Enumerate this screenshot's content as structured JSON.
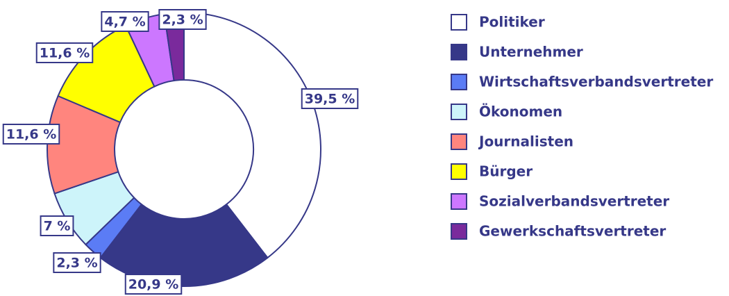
{
  "chart_data": {
    "type": "donut",
    "categories": [
      "Politiker",
      "Unternehmer",
      "Wirtschaftsverbandsvertreter",
      "Ökonomen",
      "Journalisten",
      "Bürger",
      "Sozialverbandsvertreter",
      "Gewerkschaftsvertreter"
    ],
    "values": [
      39.5,
      20.9,
      2.3,
      7,
      11.6,
      11.6,
      4.7,
      2.3
    ],
    "value_labels": [
      "39,5 %",
      "20,9 %",
      "2,3 %",
      "7 %",
      "11,6 %",
      "11,6 %",
      "4,7 %",
      "2,3 %"
    ],
    "colors": [
      "#ffffff",
      "#363888",
      "#5b7cf5",
      "#cdf4fa",
      "#ff857e",
      "#ffff00",
      "#cc77ff",
      "#7a2a9c"
    ],
    "legend": "right"
  }
}
